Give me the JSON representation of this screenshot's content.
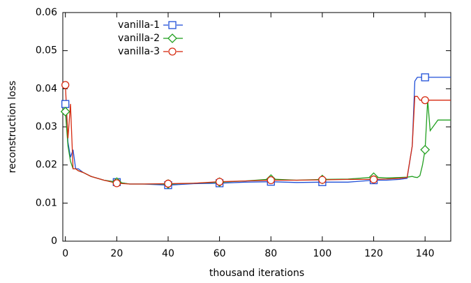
{
  "chart_data": {
    "type": "line",
    "x_label": "thousand iterations",
    "y_label": "reconstruction loss",
    "x": [
      0,
      1,
      2,
      3,
      4,
      5,
      7,
      10,
      15,
      20,
      25,
      30,
      40,
      50,
      60,
      70,
      80,
      90,
      100,
      110,
      120,
      125,
      130,
      133,
      135,
      136,
      137,
      138,
      139,
      140,
      141,
      142,
      145,
      150
    ],
    "series": [
      {
        "name": "vanilla-1",
        "color": "#1f4fd8",
        "marker": "square",
        "values": [
          0.036,
          0.026,
          0.022,
          0.024,
          0.019,
          0.019,
          0.018,
          0.017,
          0.016,
          0.0155,
          0.015,
          0.015,
          0.0147,
          0.0151,
          0.0152,
          0.0155,
          0.0156,
          0.0154,
          0.0155,
          0.0155,
          0.016,
          0.016,
          0.0162,
          0.0165,
          0.025,
          0.042,
          0.043,
          0.043,
          0.043,
          0.043,
          0.043,
          0.043,
          0.043,
          0.043
        ]
      },
      {
        "name": "vanilla-2",
        "color": "#22a020",
        "marker": "diamond",
        "values": [
          0.034,
          0.025,
          0.021,
          0.019,
          0.019,
          0.0185,
          0.018,
          0.017,
          0.016,
          0.0155,
          0.015,
          0.015,
          0.015,
          0.0152,
          0.0155,
          0.0158,
          0.0163,
          0.016,
          0.0162,
          0.0163,
          0.0168,
          0.0166,
          0.0167,
          0.0168,
          0.017,
          0.0168,
          0.0167,
          0.0172,
          0.02,
          0.024,
          0.037,
          0.029,
          0.0318,
          0.0318
        ]
      },
      {
        "name": "vanilla-3",
        "color": "#d62a10",
        "marker": "circle",
        "values": [
          0.041,
          0.027,
          0.036,
          0.019,
          0.019,
          0.0185,
          0.018,
          0.017,
          0.016,
          0.0152,
          0.015,
          0.015,
          0.0151,
          0.0152,
          0.0156,
          0.0158,
          0.016,
          0.016,
          0.0161,
          0.0162,
          0.0162,
          0.0163,
          0.0165,
          0.0167,
          0.025,
          0.038,
          0.038,
          0.037,
          0.037,
          0.037,
          0.037,
          0.037,
          0.037,
          0.037
        ]
      }
    ],
    "xlim": [
      -1,
      150
    ],
    "xticks": [
      0,
      20,
      40,
      60,
      80,
      100,
      120,
      140
    ],
    "ylim": [
      0,
      0.06
    ],
    "yticks": [
      0,
      0.01,
      0.02,
      0.03,
      0.04,
      0.05,
      0.06
    ],
    "legend": "top-left"
  }
}
